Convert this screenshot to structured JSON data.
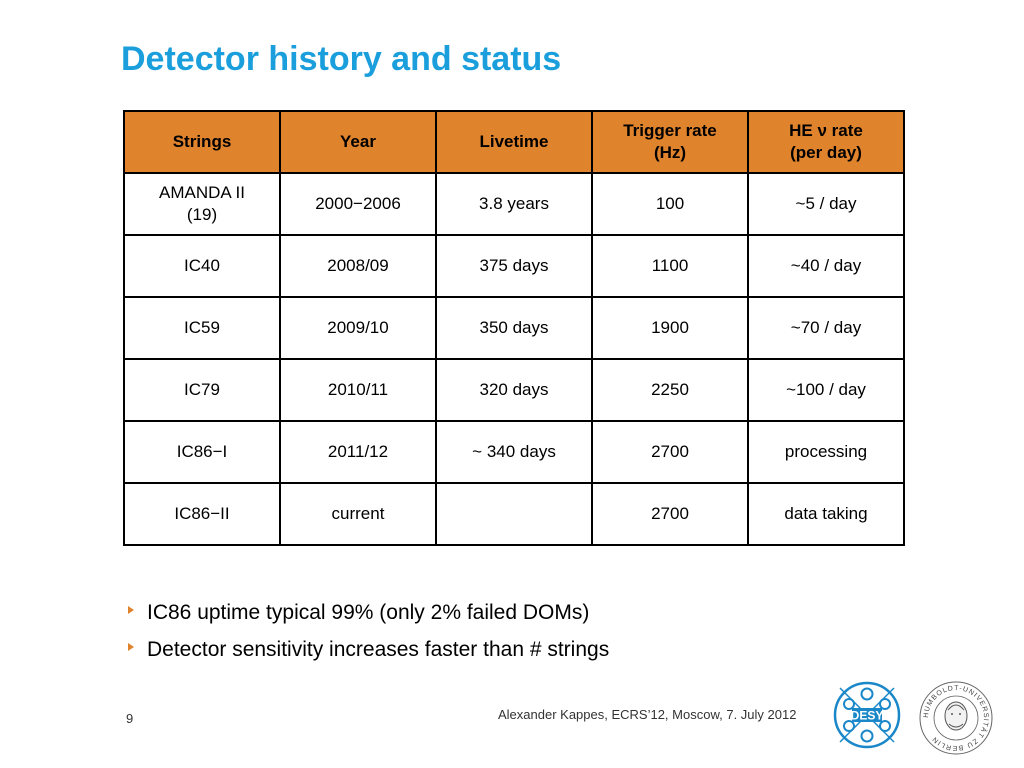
{
  "slide": {
    "title": "Detector history and status",
    "page_number": "9",
    "footer": "Alexander Kappes, ECRS’12, Moscow, 7. July 2012"
  },
  "table": {
    "headers": [
      "Strings",
      "Year",
      "Livetime",
      "Trigger rate\n(Hz)",
      "HE ν rate\n(per day)"
    ],
    "rows": [
      [
        "AMANDA II\n(19)",
        "2000−2006",
        "3.8 years",
        "100",
        "~5 / day"
      ],
      [
        "IC40",
        "2008/09",
        "375 days",
        "1100",
        "~40 / day"
      ],
      [
        "IC59",
        "2009/10",
        "350 days",
        "1900",
        "~70 / day"
      ],
      [
        "IC79",
        "2010/11",
        "320 days",
        "2250",
        "~100 / day"
      ],
      [
        "IC86−I",
        "2011/12",
        "~ 340 days",
        "2700",
        "processing"
      ],
      [
        "IC86−II",
        "current",
        "",
        "2700",
        "data taking"
      ]
    ],
    "header_color": "#e0832d"
  },
  "bullets": [
    "IC86 uptime typical 99% (only 2% failed DOMs)",
    "Detector sensitivity increases faster than # strings"
  ],
  "logos": {
    "desy_text": "DESY",
    "hu_ring_text": "HUMBOLDT-UNIVERSITÄT ZU BERLIN"
  },
  "colors": {
    "title": "#1a9fdc",
    "accent": "#e0832d",
    "desy_blue": "#1a87c9"
  }
}
